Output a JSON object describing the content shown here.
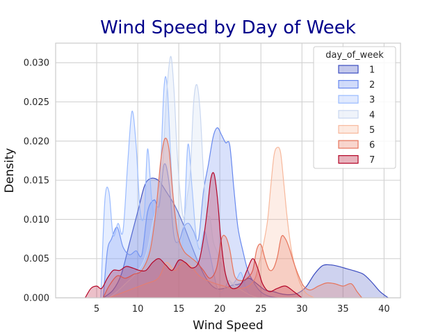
{
  "chart_data": {
    "type": "area",
    "title": "Wind Speed by Day of Week",
    "xlabel": "Wind Speed",
    "ylabel": "Density",
    "xlim": [
      0,
      42
    ],
    "ylim": [
      0,
      0.0325
    ],
    "xticks": [
      5,
      10,
      15,
      20,
      25,
      30,
      35,
      40
    ],
    "yticks": [
      0.0,
      0.005,
      0.01,
      0.015,
      0.02,
      0.025,
      0.03
    ],
    "ytick_labels": [
      "0.000",
      "0.005",
      "0.010",
      "0.015",
      "0.020",
      "0.025",
      "0.030"
    ],
    "grid": true,
    "legend": {
      "title": "day_of_week",
      "position": "top-right"
    },
    "series": [
      {
        "name": "1",
        "color": "#3b4cc0",
        "x": [
          5.8,
          7,
          8,
          9,
          10,
          10.8,
          11.5,
          12.5,
          13.5,
          14.5,
          15.5,
          16.5,
          17.5,
          18.5,
          19.5,
          20.5,
          21.5,
          22.5,
          23.5,
          24.5,
          25.5,
          26.5,
          27.5,
          28.5,
          29.5,
          30.5,
          31.5,
          32.5,
          33.5,
          34.5,
          35.5,
          36.5,
          37.5,
          38.5,
          39.5,
          40.5
        ],
        "y": [
          0,
          0.001,
          0.003,
          0.007,
          0.011,
          0.0142,
          0.0152,
          0.015,
          0.0135,
          0.0118,
          0.0095,
          0.0068,
          0.0042,
          0.0022,
          0.0012,
          0.0012,
          0.0016,
          0.0018,
          0.0025,
          0.0018,
          0.001,
          0.0008,
          0.0005,
          0.0004,
          0.0006,
          0.0014,
          0.003,
          0.0041,
          0.0042,
          0.004,
          0.0037,
          0.0034,
          0.003,
          0.002,
          0.0008,
          0.0
        ]
      },
      {
        "name": "2",
        "color": "#6788ee",
        "x": [
          5.8,
          6.3,
          6.8,
          7.5,
          8.2,
          9,
          9.8,
          10.5,
          11.2,
          12,
          12.6,
          13.2,
          13.8,
          14.4,
          15,
          15.6,
          16.2,
          16.8,
          17.4,
          18,
          18.6,
          19.2,
          19.7,
          20.2,
          20.7,
          21.2,
          21.7,
          22.2,
          22.8,
          23.4,
          24,
          24.6,
          25.2,
          26,
          27
        ],
        "y": [
          0,
          0.006,
          0.0075,
          0.009,
          0.0065,
          0.0055,
          0.006,
          0.0055,
          0.011,
          0.0125,
          0.0117,
          0.017,
          0.0148,
          0.008,
          0.0072,
          0.009,
          0.0095,
          0.0085,
          0.0075,
          0.0135,
          0.017,
          0.0206,
          0.0217,
          0.0208,
          0.0198,
          0.0195,
          0.014,
          0.009,
          0.006,
          0.0035,
          0.0022,
          0.0012,
          0.0006,
          0.0002,
          0.0
        ]
      },
      {
        "name": "3",
        "color": "#9abbff",
        "x": [
          5.5,
          6,
          6.5,
          7,
          7.6,
          8.2,
          8.8,
          9.3,
          9.8,
          10.3,
          10.8,
          11.2,
          11.7,
          12.2,
          12.7,
          13.2,
          13.6,
          14.1,
          14.6,
          15.1,
          15.6,
          16.1,
          16.6,
          17.1,
          17.6,
          18.1,
          18.6,
          19.1,
          19.6,
          20.1,
          20.6,
          21.1,
          21.6,
          22.1,
          22.6,
          23.2,
          24
        ],
        "y": [
          0,
          0.0125,
          0.0135,
          0.008,
          0.0095,
          0.0085,
          0.0175,
          0.0238,
          0.0195,
          0.011,
          0.0108,
          0.019,
          0.0125,
          0.0098,
          0.0145,
          0.0268,
          0.0268,
          0.0162,
          0.0095,
          0.0062,
          0.0085,
          0.0195,
          0.0142,
          0.008,
          0.0062,
          0.0085,
          0.0065,
          0.004,
          0.0015,
          0.0007,
          0.0012,
          0.0022,
          0.0018,
          0.0025,
          0.0032,
          0.0012,
          0.0
        ]
      },
      {
        "name": "4",
        "color": "#c9d7f0",
        "x": [
          6.5,
          7.5,
          8.5,
          9.5,
          10.5,
          11.2,
          11.8,
          12.4,
          13,
          13.5,
          14,
          14.4,
          14.8,
          15.2,
          15.6,
          16,
          16.4,
          16.8,
          17.2,
          17.6,
          18,
          18.4,
          18.8,
          19.2,
          19.6,
          20.2,
          20.8,
          21.6,
          22.6,
          23.6,
          24.6
        ],
        "y": [
          0,
          0.0008,
          0.0018,
          0.0028,
          0.0042,
          0.0062,
          0.0095,
          0.012,
          0.0165,
          0.0258,
          0.0308,
          0.0268,
          0.0185,
          0.013,
          0.0102,
          0.0128,
          0.016,
          0.0248,
          0.0272,
          0.0238,
          0.016,
          0.0108,
          0.0102,
          0.0072,
          0.006,
          0.0042,
          0.0028,
          0.0018,
          0.001,
          0.0004,
          0.0
        ]
      },
      {
        "name": "5",
        "color": "#f7b89c",
        "x": [
          6.5,
          8,
          9.5,
          11,
          12.5,
          13.5,
          14.5,
          15.5,
          16.5,
          17.5,
          18.5,
          19.5,
          20.5,
          21.5,
          22.5,
          23.5,
          24.3,
          24.8,
          25.3,
          25.8,
          26.2,
          26.6,
          27,
          27.4,
          27.8,
          28.2,
          28.7,
          29.2,
          29.8,
          30.5,
          31.5
        ],
        "y": [
          0,
          0.0006,
          0.0012,
          0.0018,
          0.0025,
          0.0045,
          0.0035,
          0.0045,
          0.004,
          0.0028,
          0.0022,
          0.0018,
          0.0015,
          0.0012,
          0.0012,
          0.0015,
          0.0025,
          0.0045,
          0.0068,
          0.0098,
          0.0142,
          0.0182,
          0.0192,
          0.0185,
          0.0145,
          0.0102,
          0.0062,
          0.0038,
          0.0018,
          0.0006,
          0.0
        ]
      },
      {
        "name": "6",
        "color": "#e7745b",
        "x": [
          5.8,
          6.5,
          7.5,
          8.5,
          9.5,
          10.5,
          11.5,
          12.2,
          12.8,
          13.3,
          13.8,
          14.3,
          14.9,
          15.6,
          16.4,
          17.2,
          18,
          18.8,
          19.6,
          20.2,
          20.7,
          21.2,
          21.8,
          22.6,
          23.3,
          24,
          24.5,
          25,
          25.5,
          26,
          26.5,
          27,
          27.5,
          28,
          28.5,
          29,
          29.6,
          30.2,
          31,
          32,
          33,
          34,
          35,
          36,
          36.7,
          37.3
        ],
        "y": [
          0,
          0.0015,
          0.0028,
          0.0025,
          0.003,
          0.0035,
          0.006,
          0.011,
          0.0175,
          0.0203,
          0.019,
          0.013,
          0.008,
          0.006,
          0.0052,
          0.0045,
          0.0035,
          0.0025,
          0.0038,
          0.0075,
          0.0078,
          0.0062,
          0.0028,
          0.0022,
          0.0025,
          0.0035,
          0.0062,
          0.0068,
          0.005,
          0.0036,
          0.0037,
          0.0052,
          0.0078,
          0.0075,
          0.0062,
          0.0045,
          0.0028,
          0.0015,
          0.001,
          0.0015,
          0.0019,
          0.0018,
          0.0015,
          0.0018,
          0.0008,
          0.0
        ]
      },
      {
        "name": "7",
        "color": "#b40426",
        "x": [
          3.6,
          4.3,
          5,
          5.6,
          6.3,
          7,
          7.8,
          8.6,
          9.4,
          10.2,
          11,
          11.8,
          12.6,
          13.4,
          14.2,
          15,
          15.8,
          16.6,
          17.4,
          18,
          18.5,
          18.9,
          19.3,
          19.7,
          20.1,
          20.6,
          21.2,
          21.9,
          22.6,
          23.3,
          24,
          24.6,
          25.2,
          26,
          27,
          28,
          29,
          30
        ],
        "y": [
          0,
          0.0012,
          0.0015,
          0.0012,
          0.0025,
          0.0035,
          0.0035,
          0.004,
          0.0038,
          0.0035,
          0.0035,
          0.0045,
          0.005,
          0.0042,
          0.0035,
          0.0048,
          0.0045,
          0.0038,
          0.0045,
          0.0075,
          0.0115,
          0.0152,
          0.0158,
          0.0128,
          0.0078,
          0.0035,
          0.0015,
          0.0012,
          0.0018,
          0.0035,
          0.005,
          0.0038,
          0.0018,
          0.0008,
          0.0012,
          0.0015,
          0.0008,
          0.0
        ]
      }
    ]
  }
}
